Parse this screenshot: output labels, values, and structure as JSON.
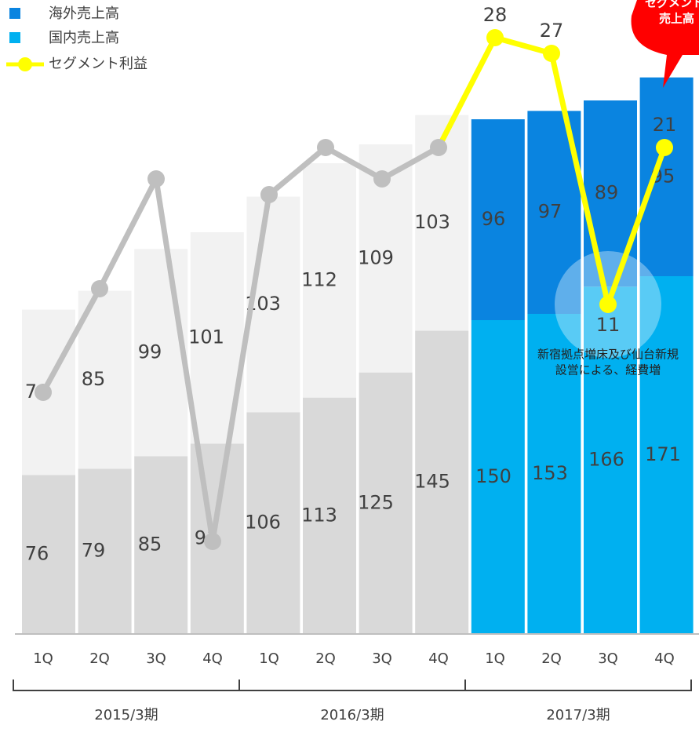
{
  "chart_data": {
    "type": "bar_line",
    "legend": [
      "海外売上高",
      "国内売上高",
      "セグメント利益"
    ],
    "categories": [
      "1Q",
      "2Q",
      "3Q",
      "4Q",
      "1Q",
      "2Q",
      "3Q",
      "4Q",
      "1Q",
      "2Q",
      "3Q",
      "4Q"
    ],
    "groups": [
      {
        "label": "2015/3期",
        "from": 0,
        "to": 3
      },
      {
        "label": "2016/3期",
        "from": 4,
        "to": 7
      },
      {
        "label": "2017/3期",
        "from": 8,
        "to": 11
      }
    ],
    "series": [
      {
        "name": "国内売上高",
        "color": "#00b0f0",
        "point_colors": [
          "#d9d9d9",
          "#d9d9d9",
          "#d9d9d9",
          "#d9d9d9",
          "#d9d9d9",
          "#d9d9d9",
          "#d9d9d9",
          "#d9d9d9",
          "#00b0f0",
          "#00b0f0",
          "#00b0f0",
          "#00b0f0"
        ],
        "values": [
          76,
          79,
          85,
          91,
          106,
          113,
          125,
          145,
          150,
          153,
          166,
          171
        ]
      },
      {
        "name": "海外売上高",
        "color": "#0a84e0",
        "point_colors": [
          "#f2f2f2",
          "#f2f2f2",
          "#f2f2f2",
          "#f2f2f2",
          "#f2f2f2",
          "#f2f2f2",
          "#f2f2f2",
          "#f2f2f2",
          "#0a84e0",
          "#0a84e0",
          "#0a84e0",
          "#0a84e0"
        ],
        "values": [
          79,
          85,
          99,
          101,
          103,
          112,
          109,
          103,
          96,
          97,
          89,
          95
        ]
      },
      {
        "name": "セグメント利益",
        "color": "#ffff00",
        "axis": "y2",
        "point_colors": [
          "#bfbfbf",
          "#bfbfbf",
          "#bfbfbf",
          "#bfbfbf",
          "#bfbfbf",
          "#bfbfbf",
          "#bfbfbf",
          "#bfbfbf",
          "#ffff00",
          "#ffff00",
          "#ffff00",
          "#ffff00"
        ],
        "values": [
          5.4,
          12,
          19,
          -4.1,
          18,
          21,
          19,
          21,
          28,
          27,
          11,
          21
        ],
        "value_labels": [
          null,
          null,
          null,
          null,
          null,
          null,
          null,
          null,
          "28",
          "27",
          "11",
          "21"
        ]
      }
    ],
    "ylim": [
      0,
      300
    ],
    "y2lim": [
      -10,
      30
    ],
    "annotation": [
      "新宿拠点増床及び仙台新規",
      "設営による、経費増"
    ],
    "callout": [
      "セグメント",
      "売上高"
    ]
  }
}
